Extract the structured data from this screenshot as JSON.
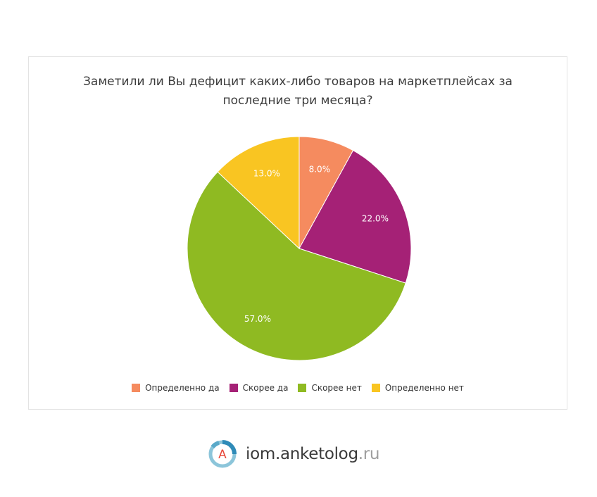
{
  "chart_data": {
    "type": "pie",
    "title": "Заметили ли Вы дефицит каких-либо товаров на маркетплейсах за последние три месяца?",
    "slices": [
      {
        "label": "Определенно да",
        "value": 8.0,
        "value_label": "8.0%",
        "color": "#f58b5f"
      },
      {
        "label": "Скорее да",
        "value": 22.0,
        "value_label": "22.0%",
        "color": "#a52176"
      },
      {
        "label": "Скорее нет",
        "value": 57.0,
        "value_label": "57.0%",
        "color": "#8fba22"
      },
      {
        "label": "Определенно нет",
        "value": 13.0,
        "value_label": "13.0%",
        "color": "#f9c522"
      }
    ],
    "start_direction": "top",
    "order": "clockwise",
    "legend_position": "bottom"
  },
  "branding": {
    "logo_letter": "A",
    "name": "iom.anketolog",
    "domain": ".ru"
  }
}
